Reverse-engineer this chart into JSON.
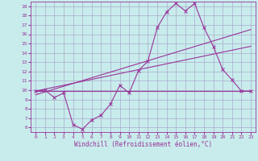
{
  "title": "",
  "xlabel": "Windchill (Refroidissement éolien,°C)",
  "ylabel": "",
  "bg_color": "#c8ecec",
  "line_color": "#993399",
  "grid_color": "#aaaacc",
  "xlim": [
    -0.5,
    23.5
  ],
  "ylim": [
    5.5,
    19.5
  ],
  "xticks": [
    0,
    1,
    2,
    3,
    4,
    5,
    6,
    7,
    8,
    9,
    10,
    11,
    12,
    13,
    14,
    15,
    16,
    17,
    18,
    19,
    20,
    21,
    22,
    23
  ],
  "yticks": [
    6,
    7,
    8,
    9,
    10,
    11,
    12,
    13,
    14,
    15,
    16,
    17,
    18,
    19
  ],
  "series1_x": [
    0,
    1,
    2,
    3,
    4,
    5,
    6,
    7,
    8,
    9,
    10,
    11,
    12,
    13,
    14,
    15,
    16,
    17,
    18,
    19,
    20,
    21,
    22,
    23
  ],
  "series1_y": [
    9.9,
    10.0,
    9.2,
    9.7,
    6.3,
    5.8,
    6.8,
    7.3,
    8.5,
    10.5,
    9.7,
    12.1,
    13.1,
    16.7,
    18.4,
    19.3,
    18.5,
    19.3,
    16.7,
    14.7,
    12.2,
    11.1,
    9.9,
    9.9
  ],
  "series2_x": [
    0,
    23
  ],
  "series2_y": [
    9.9,
    9.9
  ],
  "series3_x": [
    0,
    23
  ],
  "series3_y": [
    9.5,
    16.5
  ],
  "series4_x": [
    0,
    23
  ],
  "series4_y": [
    9.9,
    14.7
  ],
  "tick_fontsize": 4.5,
  "xlabel_fontsize": 5.5,
  "marker_size": 2.5,
  "linewidth": 0.8
}
